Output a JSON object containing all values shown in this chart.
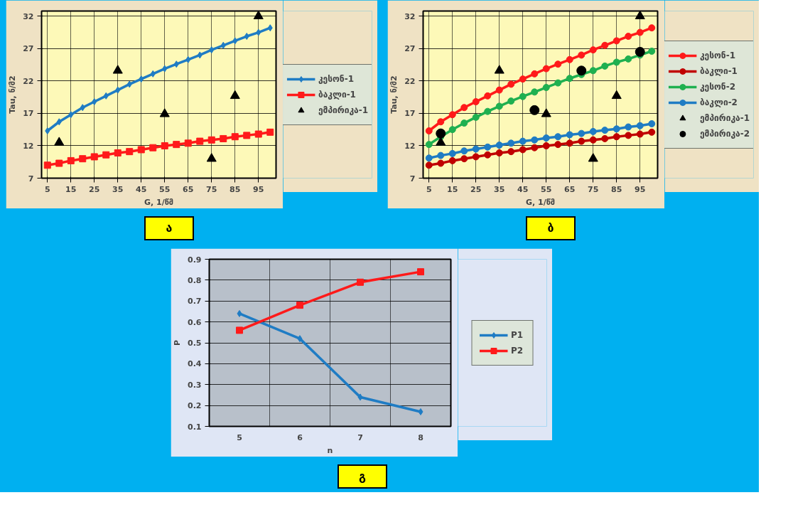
{
  "chart_data": [
    {
      "type": "line",
      "title": "ა",
      "xlabel": "G, 1/წმ",
      "ylabel": "Tau, ნ/მ2",
      "x": [
        5,
        10,
        15,
        20,
        25,
        30,
        35,
        40,
        45,
        50,
        55,
        60,
        65,
        70,
        75,
        80,
        85,
        90,
        95,
        100
      ],
      "xlim": [
        2.5,
        102.5
      ],
      "xticks": [
        5,
        15,
        25,
        35,
        45,
        55,
        65,
        75,
        85,
        95
      ],
      "ylim": [
        7,
        32.8
      ],
      "yticks": [
        7,
        12,
        17,
        22,
        27,
        32
      ],
      "grid": true,
      "legend": "right",
      "series": [
        {
          "name": "კესონ-1",
          "color": "#1f7cc4",
          "marker": "diamond",
          "values": [
            14.3,
            15.7,
            16.8,
            17.9,
            18.8,
            19.7,
            20.6,
            21.5,
            22.3,
            23.1,
            23.9,
            24.6,
            25.3,
            26.0,
            26.8,
            27.5,
            28.2,
            28.9,
            29.5,
            30.2
          ]
        },
        {
          "name": "ბაკლი-1",
          "color": "#ff1a1a",
          "marker": "square",
          "values": [
            9.0,
            9.3,
            9.7,
            10.0,
            10.3,
            10.6,
            10.9,
            11.1,
            11.4,
            11.7,
            12.0,
            12.2,
            12.4,
            12.7,
            12.9,
            13.1,
            13.4,
            13.6,
            13.8,
            14.1
          ]
        },
        {
          "name": "ემპირიკა-1",
          "type": "scatter",
          "color": "#000000",
          "marker": "triangle",
          "x": [
            10,
            35,
            55,
            75,
            85,
            95
          ],
          "values": [
            12.5,
            23.6,
            16.9,
            10.0,
            19.7,
            32.0
          ]
        }
      ]
    },
    {
      "type": "line",
      "title": "ბ",
      "xlabel": "G, 1/წმ",
      "ylabel": "Tau, ნ/მ2",
      "x": [
        5,
        10,
        15,
        20,
        25,
        30,
        35,
        40,
        45,
        50,
        55,
        60,
        65,
        70,
        75,
        80,
        85,
        90,
        95,
        100
      ],
      "xlim": [
        2.5,
        102.5
      ],
      "xticks": [
        5,
        15,
        25,
        35,
        45,
        55,
        65,
        75,
        85,
        95
      ],
      "ylim": [
        7,
        32.8
      ],
      "yticks": [
        7,
        12,
        17,
        22,
        27,
        32
      ],
      "grid": true,
      "legend": "right",
      "series": [
        {
          "name": "კესონ-1",
          "color": "#ff1a1a",
          "marker": "circle",
          "values": [
            14.3,
            15.7,
            16.8,
            17.9,
            18.8,
            19.7,
            20.6,
            21.5,
            22.3,
            23.1,
            23.9,
            24.6,
            25.3,
            26.0,
            26.8,
            27.5,
            28.2,
            28.9,
            29.5,
            30.2
          ]
        },
        {
          "name": "ბაკლი-1",
          "color": "#c00000",
          "marker": "circle",
          "values": [
            9.0,
            9.3,
            9.7,
            10.0,
            10.3,
            10.6,
            10.9,
            11.1,
            11.4,
            11.7,
            12.0,
            12.2,
            12.4,
            12.7,
            12.9,
            13.1,
            13.4,
            13.6,
            13.8,
            14.1
          ]
        },
        {
          "name": "კესონ-2",
          "color": "#1fb050",
          "marker": "circle",
          "values": [
            12.2,
            13.4,
            14.5,
            15.5,
            16.4,
            17.3,
            18.1,
            18.9,
            19.6,
            20.3,
            21.0,
            21.7,
            22.4,
            23.0,
            23.6,
            24.3,
            24.9,
            25.4,
            26.0,
            26.6
          ]
        },
        {
          "name": "ბაკლი-2",
          "color": "#1f7cc4",
          "marker": "circle",
          "values": [
            10.1,
            10.5,
            10.8,
            11.2,
            11.5,
            11.8,
            12.1,
            12.4,
            12.7,
            12.9,
            13.2,
            13.4,
            13.7,
            13.9,
            14.2,
            14.4,
            14.6,
            14.9,
            15.1,
            15.4
          ]
        },
        {
          "name": "ემპირიკა-1",
          "type": "scatter",
          "color": "#000000",
          "marker": "triangle",
          "x": [
            10,
            35,
            55,
            75,
            85,
            95
          ],
          "values": [
            12.5,
            23.6,
            16.9,
            10.0,
            19.7,
            32.0
          ]
        },
        {
          "name": "ემპირიკა-2",
          "type": "scatter",
          "color": "#000000",
          "marker": "circle",
          "x": [
            10,
            50,
            70,
            95
          ],
          "values": [
            13.9,
            17.5,
            23.6,
            26.5
          ]
        }
      ]
    },
    {
      "type": "line",
      "title": "გ",
      "xlabel": "n",
      "ylabel": "P",
      "categories": [
        "5",
        "6",
        "7",
        "8"
      ],
      "ylim": [
        0.1,
        0.9
      ],
      "yticks": [
        0.1,
        0.2,
        0.3,
        0.4,
        0.5,
        0.6,
        0.7,
        0.8,
        0.9
      ],
      "grid": true,
      "legend": "right",
      "series": [
        {
          "name": "P1",
          "color": "#1f7cc4",
          "marker": "diamond",
          "values": [
            0.64,
            0.52,
            0.24,
            0.17
          ]
        },
        {
          "name": "P2",
          "color": "#ff1a1a",
          "marker": "square",
          "values": [
            0.56,
            0.68,
            0.79,
            0.84
          ]
        }
      ]
    }
  ]
}
